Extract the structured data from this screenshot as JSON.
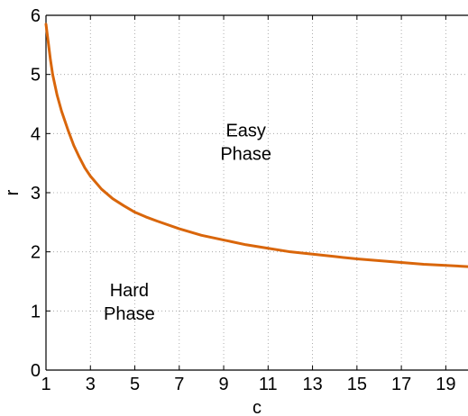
{
  "chart_data": {
    "type": "line",
    "xlabel": "c",
    "ylabel": "r",
    "xlim": [
      1,
      20
    ],
    "ylim": [
      0,
      6
    ],
    "x_ticks": [
      1,
      3,
      5,
      7,
      9,
      11,
      13,
      15,
      17,
      19
    ],
    "y_ticks": [
      0,
      1,
      2,
      3,
      4,
      5,
      6
    ],
    "grid": true,
    "series": [
      {
        "color": "#d9660b",
        "x": [
          1,
          1.1,
          1.2,
          1.3,
          1.5,
          1.7,
          2,
          2.25,
          2.5,
          2.75,
          3,
          3.5,
          4,
          4.5,
          5,
          5.5,
          6,
          7,
          8,
          9,
          10,
          11,
          12,
          13,
          14,
          15,
          16,
          17,
          18,
          19,
          20
        ],
        "y": [
          5.85,
          5.55,
          5.25,
          5.0,
          4.65,
          4.38,
          4.05,
          3.8,
          3.6,
          3.42,
          3.28,
          3.06,
          2.9,
          2.78,
          2.67,
          2.59,
          2.52,
          2.39,
          2.28,
          2.2,
          2.12,
          2.06,
          2.0,
          1.96,
          1.92,
          1.88,
          1.85,
          1.82,
          1.79,
          1.77,
          1.75
        ]
      }
    ],
    "annotations": [
      {
        "lines": [
          "Easy",
          "Phase"
        ],
        "x": 10.0,
        "y": 3.95
      },
      {
        "lines": [
          "Hard",
          "Phase"
        ],
        "x": 4.75,
        "y": 1.25
      }
    ]
  }
}
